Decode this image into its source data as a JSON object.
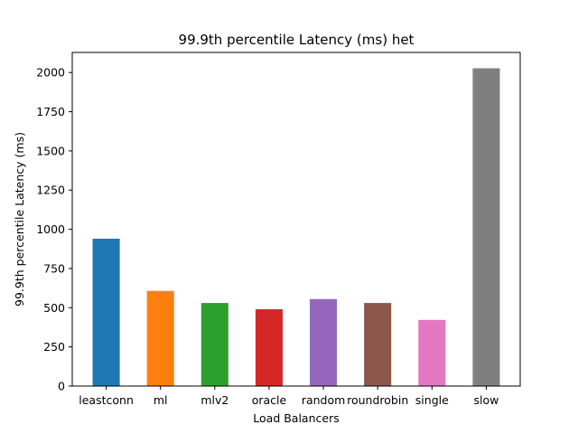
{
  "chart_data": {
    "type": "bar",
    "title": "99.9th percentile Latency (ms) het",
    "xlabel": "Load Balancers",
    "ylabel": "99.9th percentile Latency (ms)",
    "categories": [
      "leastconn",
      "ml",
      "mlv2",
      "oracle",
      "random",
      "roundrobin",
      "single",
      "slow"
    ],
    "values": [
      940,
      607,
      530,
      490,
      555,
      530,
      422,
      2027
    ],
    "colors": [
      "#1f77b4",
      "#ff7f0e",
      "#2ca02c",
      "#d62728",
      "#9467bd",
      "#8c564b",
      "#e377c2",
      "#7f7f7f"
    ],
    "ylim": [
      0,
      2128
    ],
    "yticks": [
      0,
      250,
      500,
      750,
      1000,
      1250,
      1500,
      1750,
      2000
    ],
    "grid": false,
    "legend": "none"
  }
}
